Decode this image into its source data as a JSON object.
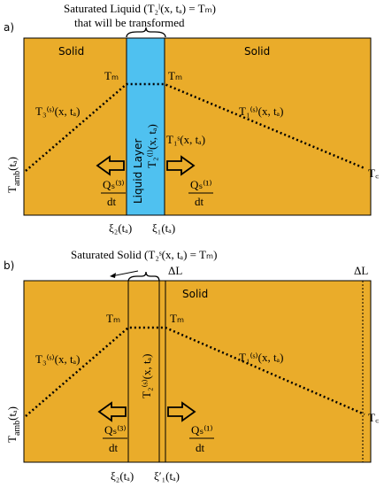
{
  "panel_a": {
    "label": "a)",
    "title_line1": "Saturated Liquid (T₂ˡ(x, tₐ) = Tₘ)",
    "title_line2": "that will be transformed",
    "solid_left": "Solid",
    "solid_right": "Solid",
    "tm_left": "Tₘ",
    "tm_right": "Tₘ",
    "t3": "T₃⁽ˢ⁾(x, tₐ)",
    "t2": "T₂⁽ˡ⁾(x, tₐ)",
    "t1_inner": "T₁ˢ(x, tₐ)",
    "t1": "T₁⁽ˢ⁾(x, tₐ)",
    "layer": "Liquid Layer",
    "tamb": {
      "base": "T",
      "sub": "amb",
      "arg": "(tₐ)"
    },
    "tc": "T꜀",
    "q3_num": "Qₛ⁽³⁾",
    "q1_num": "Qₛ⁽¹⁾",
    "denominator": "dt",
    "xi2": "ξ₂(tₐ)",
    "xi1": "ξ₁(tₐ)"
  },
  "panel_b": {
    "label": "b)",
    "title": "Saturated Solid (T₂ˢ(x, tₐ) = Tₘ)",
    "delta_l_strip": "ΔL",
    "delta_l_right": "ΔL",
    "solid": "Solid",
    "tm_left": "Tₘ",
    "tm_right": "Tₘ",
    "t3": "T₃⁽ˢ⁾(x, tₐ)",
    "t2": "T₂⁽ˢ⁾(x, tₐ)",
    "t1": "T₁⁽ˢ⁾(x, tₐ)",
    "tamb": {
      "base": "T",
      "sub": "amb",
      "arg": "(tₐ)"
    },
    "tc": "T꜀",
    "q3_num": "Qₛ⁽³⁾",
    "q1_num": "Qₛ⁽¹⁾",
    "denominator": "dt",
    "xi2": "ξ₂(tₐ)",
    "xi1": "ξ′₁(tₐ)"
  }
}
